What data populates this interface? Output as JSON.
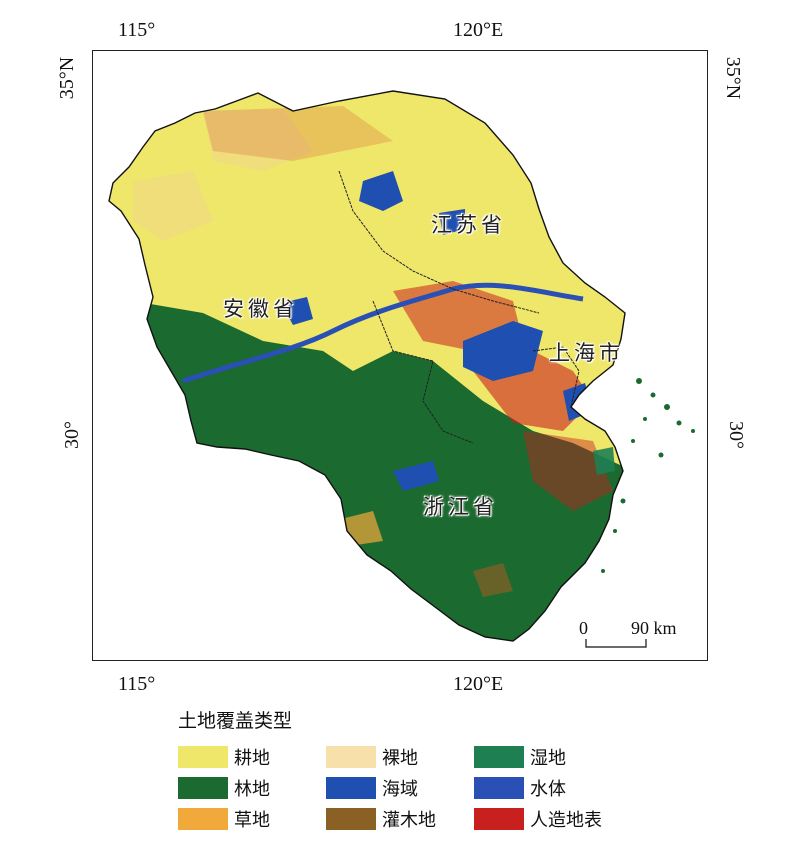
{
  "map": {
    "lon_ticks": [
      "115°",
      "120°E"
    ],
    "lat_ticks": [
      "35°N",
      "30°"
    ],
    "provinces": [
      "江苏省",
      "安徽省",
      "上海市",
      "浙江省"
    ],
    "scale_bar": {
      "start": "0",
      "end": "90 km"
    }
  },
  "legend": {
    "title": "土地覆盖类型",
    "items": [
      {
        "label": "耕地",
        "color": "#efe76a"
      },
      {
        "label": "裸地",
        "color": "#f7e0aa"
      },
      {
        "label": "湿地",
        "color": "#1e7f52"
      },
      {
        "label": "林地",
        "color": "#1b6a2f"
      },
      {
        "label": "海域",
        "color": "#1f4fb0"
      },
      {
        "label": "水体",
        "color": "#2a4fb5"
      },
      {
        "label": "草地",
        "color": "#f2a93b"
      },
      {
        "label": "灌木地",
        "color": "#8a6025"
      },
      {
        "label": "人造地表",
        "color": "#c8201e"
      }
    ]
  }
}
